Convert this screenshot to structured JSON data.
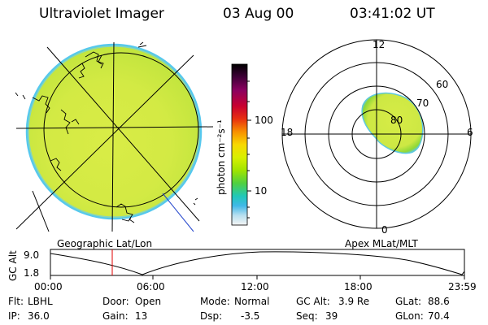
{
  "header": {
    "title": "Ultraviolet Imager",
    "date": "03 Aug 00",
    "time": "03:41:02 UT"
  },
  "colorbar": {
    "label": "photon cm⁻²s⁻¹",
    "ticks": [
      "100",
      "10"
    ],
    "colors": [
      "#000000",
      "#3a0030",
      "#7a0060",
      "#b00040",
      "#d80010",
      "#f04000",
      "#f89000",
      "#f0d000",
      "#d8f000",
      "#a8e800",
      "#60d820",
      "#20c8a0",
      "#30b0e0",
      "#a0d8f0",
      "#f0f0f0"
    ]
  },
  "geo_panel": {
    "caption": "Geographic Lat/Lon",
    "disk_colors": {
      "main": "#d9ec46",
      "bright": "#b8e23a",
      "limb": "#7fd4c8",
      "limb_outer": "#56c8ee"
    }
  },
  "polar_panel": {
    "caption": "Apex MLat/MLT",
    "mlt_labels": {
      "top": "12",
      "left": "18",
      "right": "6",
      "bottom": "0"
    },
    "lat_labels": [
      "60",
      "70",
      "80"
    ],
    "blob_colors": {
      "fill": "#d7ec46",
      "edge": "#8fd838",
      "rim": "#5ec8e0"
    }
  },
  "altitude_plot": {
    "ylabel": "GC Alt",
    "yticks": [
      "9.0",
      "1.8"
    ],
    "xticks": [
      "00:00",
      "06:00",
      "12:00",
      "18:00",
      "23:59"
    ],
    "marker_color": "#e00000",
    "marker_time": "03:41"
  },
  "status": {
    "flt_label": "Flt:",
    "flt_value": "LBHL",
    "ip_label": "IP:",
    "ip_value": "36.0",
    "door_label": "Door:",
    "door_value": "Open",
    "gain_label": "Gain:",
    "gain_value": "13",
    "mode_label": "Mode:",
    "mode_value": "Normal",
    "dsp_label": "Dsp:",
    "dsp_value": "-3.5",
    "gcalt_label": "GC Alt:",
    "gcalt_value": "3.9 Re",
    "seq_label": "Seq:",
    "seq_value": "39",
    "glat_label": "GLat:",
    "glat_value": "88.6",
    "glon_label": "GLon:",
    "glon_value": "70.4"
  }
}
